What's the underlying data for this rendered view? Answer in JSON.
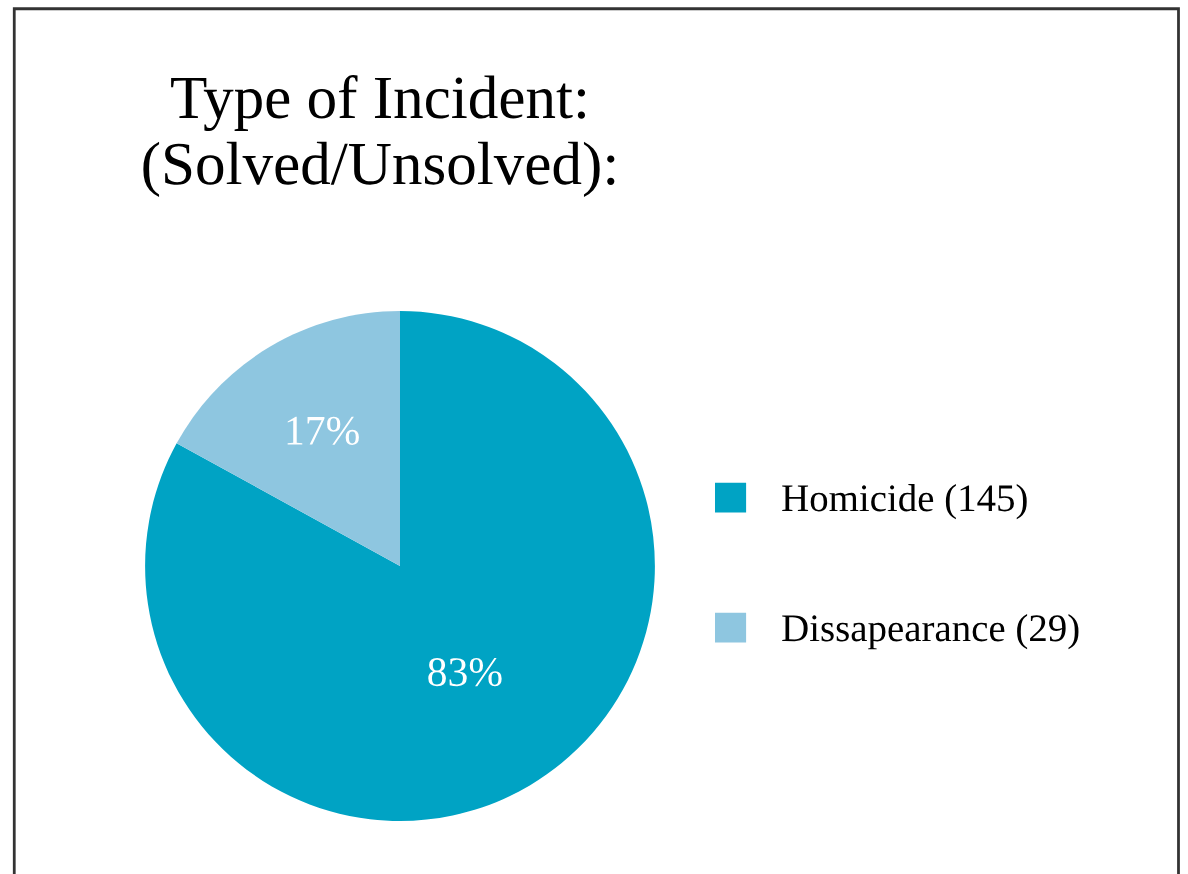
{
  "chart_data": {
    "type": "pie",
    "title": "Type of Incident:\n(Solved/Unsolved):",
    "categories": [
      "Homicide (145)",
      "Dissapearance (29)"
    ],
    "values": [
      83,
      17
    ],
    "colors": [
      "#00a3c4",
      "#8ec6e0"
    ],
    "value_labels": [
      "83%",
      "17%"
    ],
    "legend": "right"
  }
}
